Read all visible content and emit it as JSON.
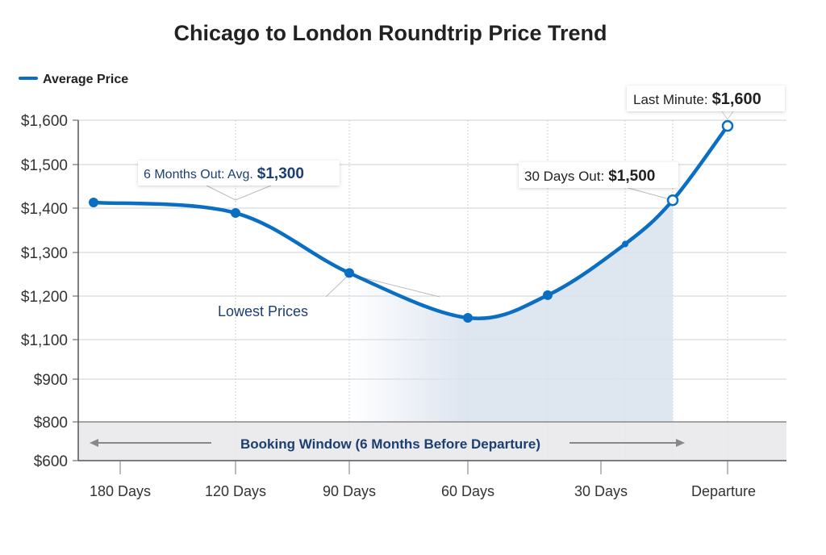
{
  "chart_data": {
    "type": "line",
    "title": "Chicago to London Roundtrip Price Trend",
    "legend": {
      "label": "Average Price",
      "placement": "top-left"
    },
    "y_ticks": [
      1600,
      1500,
      1400,
      1300,
      1200,
      1100,
      900,
      800,
      600
    ],
    "y_tick_labels": [
      "$1,600",
      "$1,500",
      "$1,400",
      "$1,300",
      "$1,200",
      "$1,100",
      "$900",
      "$800",
      "$600"
    ],
    "x_tick_labels": [
      "180 Days",
      "120 Days",
      "90 Days",
      "60 Days",
      "30 Days",
      "Departure"
    ],
    "series": [
      {
        "name": "Average Price",
        "values": [
          1413,
          1389,
          1253,
          1150,
          1202,
          1319,
          1418,
          1587
        ]
      }
    ],
    "grid": true,
    "colors": {
      "line": "#0a6fc2",
      "label": "#1c3f72",
      "band": "#e7e8eb",
      "shade": "#dbe3ef"
    },
    "annotations": {
      "six_months": {
        "prefix": "6 Months Out: Avg.",
        "value": "$1,300"
      },
      "lowest": "Lowest Prices",
      "thirty_days": {
        "prefix": "30 Days Out:",
        "value": "$1,500"
      },
      "last_minute": {
        "prefix": "Last Minute:",
        "value": "$1,600"
      },
      "booking_window": "Booking Window (6 Months Before Departure)"
    }
  }
}
